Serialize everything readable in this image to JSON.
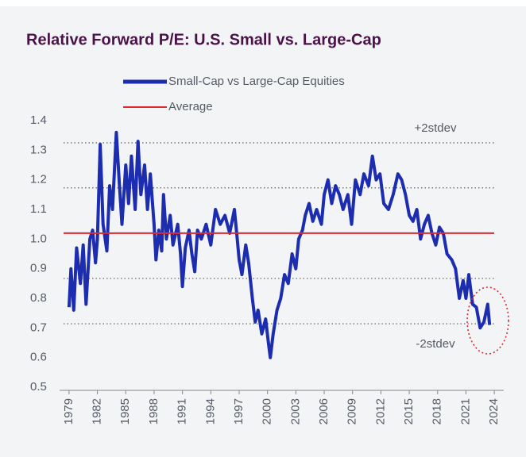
{
  "chart_data": {
    "type": "line",
    "title": "Relative Forward P/E: U.S. Small vs. Large-Cap",
    "x": [
      1979.0,
      1979.2,
      1979.5,
      1979.8,
      1980.2,
      1980.5,
      1980.8,
      1981.2,
      1981.5,
      1981.8,
      1982.0,
      1982.3,
      1982.6,
      1983.0,
      1983.3,
      1983.6,
      1984.0,
      1984.3,
      1984.6,
      1985.0,
      1985.3,
      1985.6,
      1986.0,
      1986.3,
      1986.6,
      1987.0,
      1987.3,
      1987.6,
      1988.0,
      1988.2,
      1988.5,
      1988.8,
      1989.0,
      1989.3,
      1989.7,
      1990.0,
      1990.5,
      1990.8,
      1991.0,
      1991.3,
      1991.7,
      1992.0,
      1992.3,
      1992.6,
      1993.0,
      1993.5,
      1994.0,
      1994.5,
      1995.0,
      1995.5,
      1996.0,
      1996.5,
      1996.8,
      1997.0,
      1997.3,
      1997.7,
      1998.0,
      1998.4,
      1998.7,
      1999.0,
      1999.4,
      1999.8,
      2000.1,
      2000.3,
      2000.6,
      2001.0,
      2001.4,
      2001.8,
      2002.2,
      2002.6,
      2003.0,
      2003.3,
      2003.7,
      2004.0,
      2004.4,
      2004.8,
      2005.2,
      2005.7,
      2006.0,
      2006.4,
      2006.8,
      2007.2,
      2007.6,
      2008.0,
      2008.5,
      2008.9,
      2009.3,
      2009.8,
      2010.2,
      2010.7,
      2011.1,
      2011.5,
      2011.9,
      2012.3,
      2012.8,
      2013.3,
      2013.8,
      2014.2,
      2014.6,
      2015.0,
      2015.4,
      2015.8,
      2016.2,
      2016.6,
      2017.0,
      2017.4,
      2017.8,
      2018.2,
      2018.6,
      2019.0,
      2019.5,
      2019.9,
      2020.3,
      2020.7,
      2021.0,
      2021.3,
      2021.7,
      2022.1,
      2022.5,
      2022.9,
      2023.3,
      2023.5
    ],
    "series": [
      {
        "name": "Small-Cap vs Large-Cap Equities",
        "color": "#1c2db0",
        "values": [
          0.77,
          0.9,
          0.76,
          0.97,
          0.85,
          0.98,
          0.78,
          1.0,
          1.03,
          0.92,
          1.0,
          1.32,
          1.05,
          0.96,
          1.18,
          1.1,
          1.36,
          1.2,
          1.05,
          1.25,
          1.12,
          1.28,
          1.1,
          1.33,
          1.15,
          1.25,
          1.1,
          1.22,
          1.05,
          0.93,
          1.03,
          0.96,
          1.15,
          1.0,
          1.08,
          0.98,
          1.05,
          0.95,
          0.84,
          0.97,
          1.03,
          0.95,
          0.89,
          1.03,
          1.0,
          1.05,
          0.98,
          1.1,
          1.05,
          1.08,
          1.02,
          1.1,
          1.0,
          0.93,
          0.88,
          0.98,
          0.92,
          0.8,
          0.72,
          0.76,
          0.68,
          0.73,
          0.65,
          0.6,
          0.68,
          0.76,
          0.8,
          0.88,
          0.85,
          0.95,
          0.9,
          1.0,
          1.03,
          1.08,
          1.12,
          1.06,
          1.1,
          1.05,
          1.15,
          1.2,
          1.12,
          1.18,
          1.15,
          1.1,
          1.15,
          1.05,
          1.2,
          1.15,
          1.22,
          1.18,
          1.28,
          1.2,
          1.22,
          1.12,
          1.1,
          1.15,
          1.22,
          1.2,
          1.15,
          1.08,
          1.06,
          1.1,
          1.0,
          1.05,
          1.08,
          1.02,
          0.98,
          1.04,
          1.02,
          0.95,
          0.93,
          0.9,
          0.8,
          0.86,
          0.8,
          0.88,
          0.78,
          0.77,
          0.7,
          0.72,
          0.78,
          0.71
        ]
      },
      {
        "name": "Average",
        "color": "#e0282e",
        "constant": 1.02
      }
    ],
    "reference_lines": [
      {
        "value": 1.325,
        "label": "+2stdev"
      },
      {
        "value": 1.173
      },
      {
        "value": 0.867
      },
      {
        "value": 0.714,
        "label": "-2stdev"
      }
    ],
    "xlim": [
      1978,
      2025
    ],
    "xticks": [
      1979,
      1982,
      1985,
      1988,
      1991,
      1994,
      1997,
      2000,
      2003,
      2006,
      2009,
      2012,
      2015,
      2018,
      2021,
      2024
    ],
    "ylim": [
      0.5,
      1.4
    ],
    "yticks": [
      1.4,
      1.3,
      1.2,
      1.1,
      {
        "value": 1,
        "label": "1.0"
      },
      0.9,
      0.8,
      0.7,
      0.6,
      0.5
    ]
  }
}
